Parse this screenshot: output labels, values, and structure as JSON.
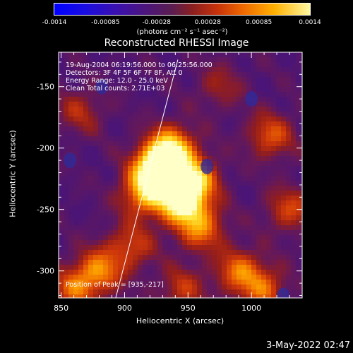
{
  "chart_data": {
    "type": "heatmap",
    "title": "Reconstructed RHESSI Image",
    "xlabel": "Heliocentric X (arcsec)",
    "ylabel": "Heliocentric Y (arcsec)",
    "xlim": [
      848,
      1040
    ],
    "ylim": [
      -322,
      -122
    ],
    "xticks": [
      850,
      900,
      950,
      1000
    ],
    "yticks": [
      -150,
      -200,
      -250,
      -300
    ],
    "colorbar": {
      "ticks": [
        "-0.0014",
        "-0.00085",
        "-0.00028",
        "0.00028",
        "0.00085",
        "0.0014"
      ],
      "range": [
        -0.0014,
        0.0014
      ],
      "units": "(photons cm⁻² s⁻¹ asec⁻²)",
      "colors": [
        "#0000ff",
        "#4c167a",
        "#8a1f20",
        "#f06a00",
        "#ffb000",
        "#fff8a0"
      ]
    },
    "annotations": [
      "19-Aug-2004 06:19:56.000 to 06:25:56.000",
      "Detectors: 3F 4F 5F 6F 7F 8F, Att 0",
      "Energy Range: 12.0 - 25.0 keV",
      "Clean     Total counts: 2.71E+03"
    ],
    "peak_label": "Position of Peak = [935,-217]",
    "peak": [
      935,
      -217
    ],
    "limb_line": [
      [
        893,
        -322
      ],
      [
        942,
        -128
      ]
    ],
    "sources": [
      {
        "x": 925,
        "y": -217,
        "level": 1.0
      },
      {
        "x": 945,
        "y": -243,
        "level": 0.9
      },
      {
        "x": 937,
        "y": -200,
        "level": 0.75
      },
      {
        "x": 955,
        "y": -225,
        "level": 0.7
      },
      {
        "x": 915,
        "y": -238,
        "level": 0.6
      },
      {
        "x": 960,
        "y": -265,
        "level": 0.55
      },
      {
        "x": 880,
        "y": -300,
        "level": 0.55
      },
      {
        "x": 905,
        "y": -280,
        "level": 0.4
      },
      {
        "x": 990,
        "y": -300,
        "level": 0.5
      },
      {
        "x": 1015,
        "y": -190,
        "level": 0.45
      },
      {
        "x": 1030,
        "y": -250,
        "level": 0.4
      },
      {
        "x": 1010,
        "y": -315,
        "level": 0.45
      },
      {
        "x": 865,
        "y": -170,
        "level": 0.3
      },
      {
        "x": 860,
        "y": -315,
        "level": 0.45
      },
      {
        "x": 975,
        "y": -150,
        "level": 0.25
      },
      {
        "x": 945,
        "y": -315,
        "level": 0.35
      }
    ]
  },
  "timestamp": "3-May-2022 02:47"
}
